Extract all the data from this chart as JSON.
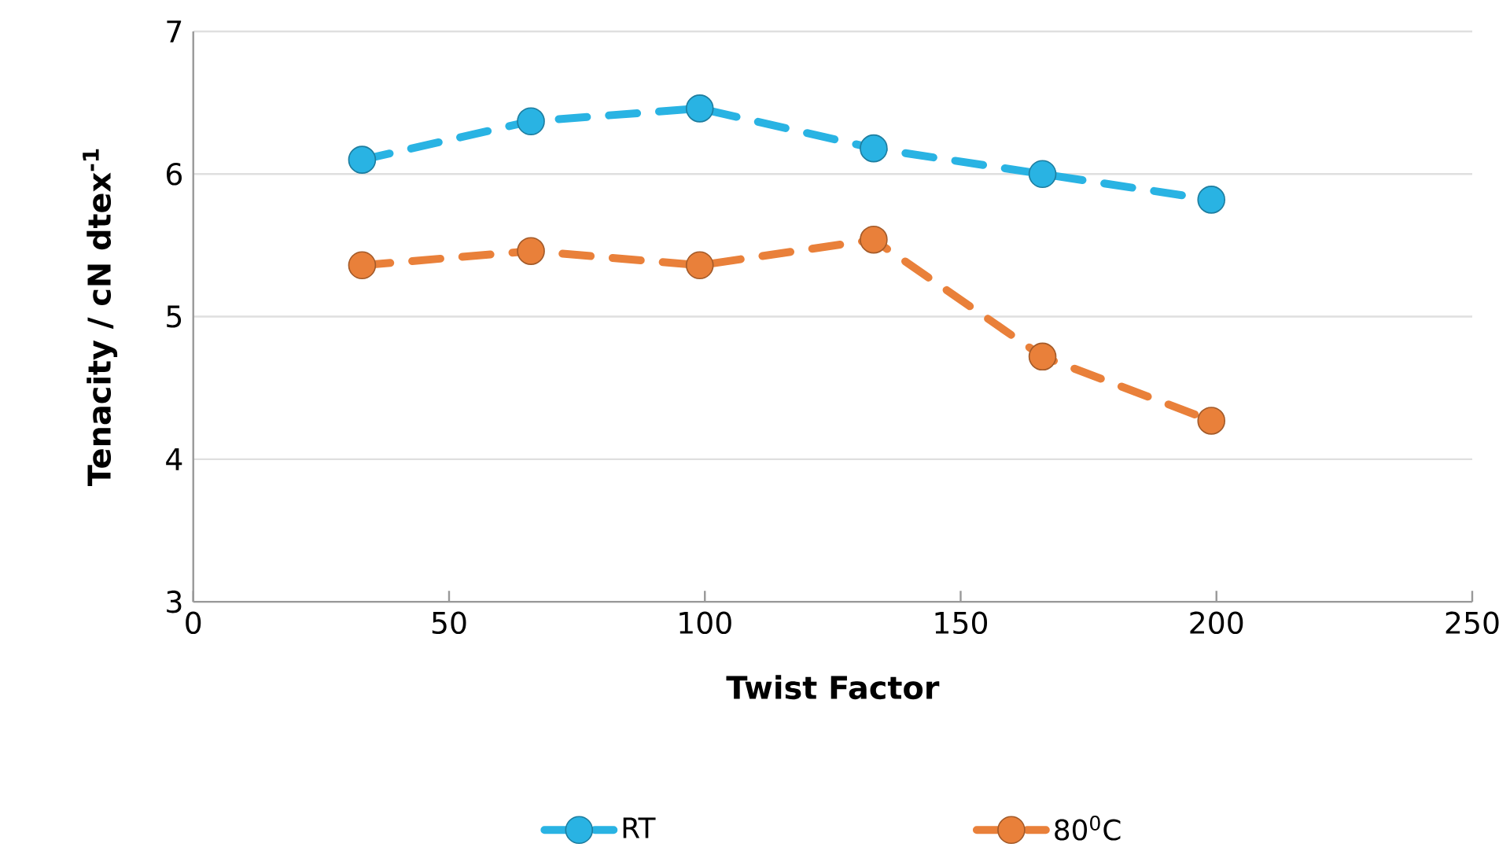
{
  "chart_data": {
    "type": "line",
    "xlabel": "Twist Factor",
    "ylabel": "Tenacity / cN dtex$^{-1}$",
    "xlim": [
      0,
      250
    ],
    "ylim": [
      3,
      7
    ],
    "xticks": [
      0,
      50,
      100,
      150,
      200,
      250
    ],
    "yticks": [
      3,
      4,
      5,
      6,
      7
    ],
    "grid": "y",
    "legend": "bottom",
    "marker": "circle",
    "line_style": "dashed",
    "series": [
      {
        "name": "RT",
        "color": "#29b3e3",
        "x": [
          33,
          66,
          99,
          133,
          166,
          199
        ],
        "values": [
          6.1,
          6.37,
          6.46,
          6.18,
          6.0,
          5.82
        ]
      },
      {
        "name": "80$^{0}$C",
        "color": "#e9803a",
        "x": [
          33,
          66,
          99,
          133,
          166,
          199
        ],
        "values": [
          5.36,
          5.46,
          5.36,
          5.54,
          4.72,
          4.27
        ]
      }
    ]
  }
}
